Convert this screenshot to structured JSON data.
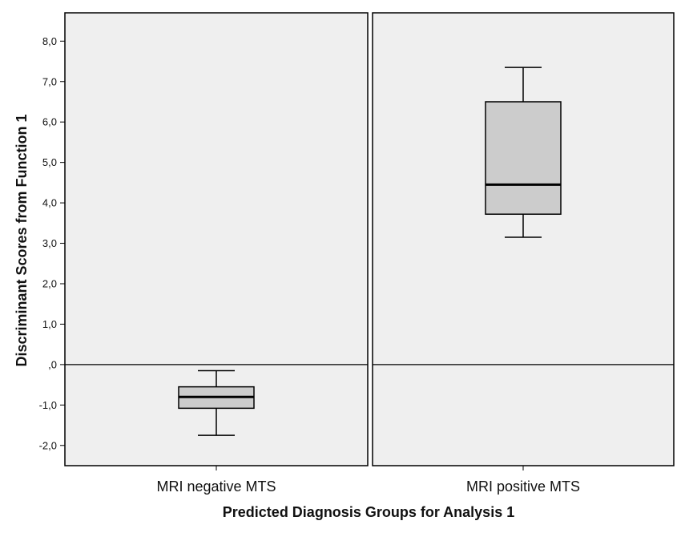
{
  "chart_data": {
    "type": "boxplot",
    "title": "",
    "xlabel": "Predicted Diagnosis Groups for Analysis 1",
    "ylabel": "Discriminant Scores from Function 1",
    "ylim": [
      -2.5,
      8.7
    ],
    "yticks": [
      -2.0,
      -1.0,
      0.0,
      1.0,
      2.0,
      3.0,
      4.0,
      5.0,
      6.0,
      7.0,
      8.0
    ],
    "ytick_labels": [
      "-2,0",
      "-1,0",
      ",0",
      "1,0",
      "2,0",
      "3,0",
      "4,0",
      "5,0",
      "6,0",
      "7,0",
      "8,0"
    ],
    "reference_line": 0.0,
    "grid": false,
    "colors": {
      "panel": "#efefef",
      "box": "#cccccc",
      "line": "#000000"
    },
    "categories": [
      "MRI negative MTS",
      "MRI positive MTS"
    ],
    "boxes": [
      {
        "category": "MRI negative MTS",
        "min": -1.75,
        "q1": -1.08,
        "median": -0.8,
        "q3": -0.55,
        "max": -0.15
      },
      {
        "category": "MRI positive MTS",
        "min": 3.15,
        "q1": 3.72,
        "median": 4.45,
        "q3": 6.5,
        "max": 7.35
      }
    ]
  }
}
